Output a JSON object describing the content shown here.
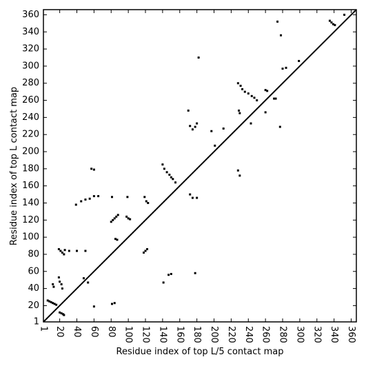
{
  "chart_data": {
    "type": "scatter",
    "xlabel": "Residue index of top L/5 contact map",
    "ylabel": "Residue index of top L contact map",
    "xlim": [
      1,
      366
    ],
    "ylim": [
      1,
      366
    ],
    "xticks": [
      1,
      20,
      40,
      60,
      80,
      100,
      120,
      140,
      160,
      180,
      200,
      220,
      240,
      260,
      280,
      300,
      320,
      340,
      360
    ],
    "yticks": [
      1,
      20,
      40,
      60,
      80,
      100,
      120,
      140,
      160,
      180,
      200,
      220,
      240,
      260,
      280,
      300,
      320,
      340,
      360
    ],
    "series": [
      {
        "color": "#000000",
        "x": [
          6,
          8,
          10,
          12,
          14,
          16,
          20,
          22,
          24,
          25,
          19,
          21,
          23,
          25,
          26,
          12,
          13,
          19,
          20,
          22,
          23,
          31,
          40,
          50,
          39,
          45,
          50,
          55,
          60,
          65,
          57,
          60,
          80,
          82,
          84,
          86,
          88,
          85,
          87,
          98,
          100,
          102,
          81,
          84,
          81,
          99,
          119,
          121,
          123,
          118,
          120,
          122,
          140,
          142,
          145,
          148,
          150,
          152,
          155,
          48,
          53,
          60
        ],
        "y": [
          26,
          25,
          24,
          23,
          22,
          21,
          12,
          11,
          10,
          9,
          86,
          84,
          82,
          80,
          85,
          45,
          42,
          53,
          48,
          45,
          40,
          84,
          84,
          84,
          138,
          142,
          144,
          145,
          148,
          148,
          180,
          179,
          118,
          120,
          122,
          124,
          126,
          98,
          97,
          124,
          122,
          121,
          22,
          23,
          147,
          147,
          147,
          142,
          140,
          82,
          84,
          86,
          185,
          180,
          176,
          173,
          170,
          168,
          164,
          52,
          47,
          19
        ]
      },
      {
        "color": "#000000",
        "x": [
          147,
          150,
          141,
          178,
          170,
          172,
          175,
          178,
          180,
          172,
          175,
          180,
          197,
          211,
          201,
          229,
          230,
          228,
          230,
          228,
          231,
          233,
          236,
          240,
          244,
          247,
          250,
          243,
          260,
          262,
          270,
          272,
          280,
          284,
          278,
          274,
          335,
          337,
          339,
          341,
          299,
          277,
          260,
          182,
          352
        ],
        "y": [
          56,
          57,
          47,
          58,
          248,
          230,
          226,
          229,
          233,
          150,
          146,
          146,
          224,
          227,
          207,
          248,
          245,
          178,
          172,
          280,
          277,
          273,
          270,
          268,
          265,
          263,
          260,
          233,
          272,
          271,
          262,
          262,
          297,
          298,
          336,
          352,
          353,
          351,
          349,
          348,
          306,
          229,
          246,
          310,
          360
        ]
      }
    ]
  }
}
